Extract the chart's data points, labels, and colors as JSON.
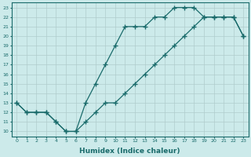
{
  "xlabel": "Humidex (Indice chaleur)",
  "bg_color": "#cceaea",
  "line_color": "#1a6b6b",
  "grid_color": "#b0cccc",
  "xlim": [
    -0.5,
    23.5
  ],
  "ylim": [
    9.5,
    23.5
  ],
  "xticks": [
    0,
    1,
    2,
    3,
    4,
    5,
    6,
    7,
    8,
    9,
    10,
    11,
    12,
    13,
    14,
    15,
    16,
    17,
    18,
    19,
    20,
    21,
    22,
    23
  ],
  "yticks": [
    10,
    11,
    12,
    13,
    14,
    15,
    16,
    17,
    18,
    19,
    20,
    21,
    22,
    23
  ],
  "curve1_x": [
    0,
    1,
    2,
    3,
    4,
    5,
    6,
    7,
    8,
    9,
    10,
    11,
    12,
    13,
    14,
    15,
    16,
    17,
    18,
    19,
    20,
    21,
    22,
    23
  ],
  "curve1_y": [
    13,
    12,
    12,
    12,
    11,
    10,
    10,
    13,
    15,
    17,
    19,
    21,
    21,
    21,
    22,
    22,
    23,
    23,
    23,
    22,
    22,
    22,
    22,
    20
  ],
  "curve2_x": [
    0,
    1,
    2,
    3,
    4,
    5,
    6,
    7,
    8,
    9,
    10,
    11,
    12,
    13,
    14,
    15,
    16,
    17,
    18,
    19,
    20,
    21,
    22,
    23
  ],
  "curve2_y": [
    13,
    12,
    12,
    12,
    11,
    10,
    10,
    11,
    12,
    13,
    13,
    14,
    15,
    16,
    17,
    18,
    19,
    20,
    21,
    22,
    22,
    22,
    22,
    20
  ]
}
